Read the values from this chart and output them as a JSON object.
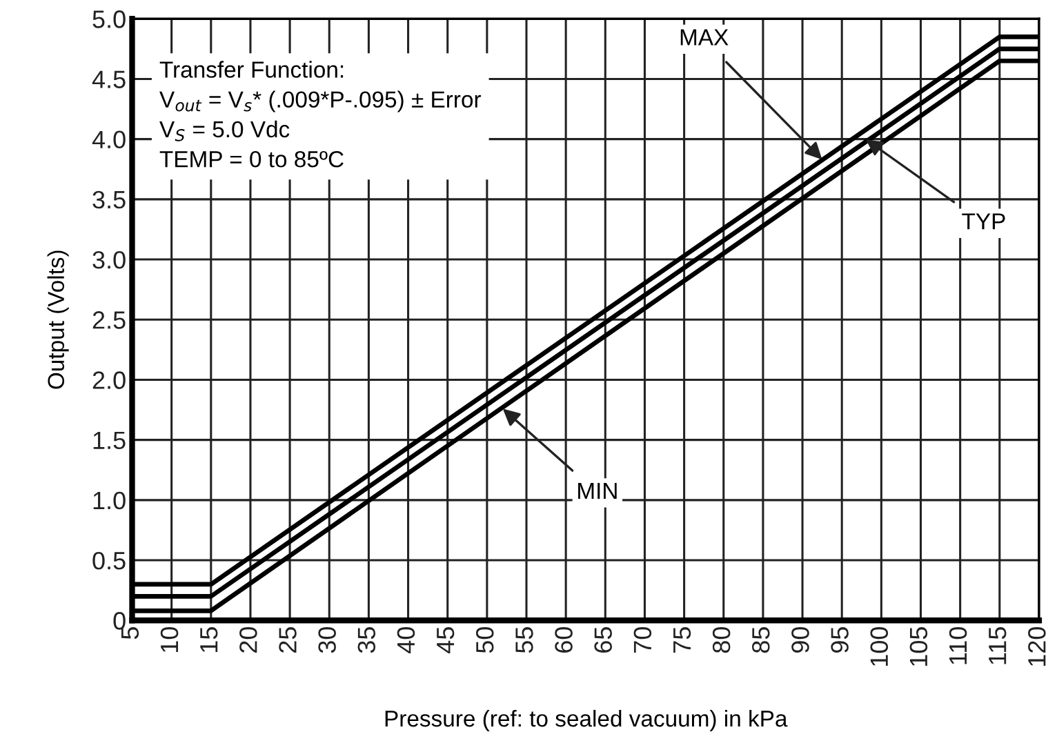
{
  "chart_data": {
    "type": "line",
    "xlabel": "Pressure (ref: to sealed vacuum) in kPa",
    "ylabel": "Output (Volts)",
    "series": [
      {
        "color": "#000000",
        "x": [
          5,
          15,
          115,
          120
        ],
        "values": [
          0.3,
          0.3,
          4.85,
          4.85
        ]
      },
      {
        "color": "#000000",
        "x": [
          5,
          15,
          115,
          120
        ],
        "values": [
          0.2,
          0.2,
          4.75,
          4.75
        ]
      },
      {
        "color": "#000000",
        "x": [
          5,
          15,
          115,
          120
        ],
        "values": [
          0.08,
          0.08,
          4.65,
          4.65
        ]
      }
    ],
    "xlim": [
      5,
      120
    ],
    "xticks": [
      5,
      10,
      15,
      20,
      25,
      30,
      35,
      40,
      45,
      50,
      55,
      60,
      65,
      70,
      75,
      80,
      85,
      90,
      95,
      100,
      105,
      110,
      115,
      120
    ],
    "ylim": [
      0,
      5
    ],
    "yticks": [
      0,
      0.5,
      {
        "value": 1,
        "label": "1.0"
      },
      1.5,
      {
        "value": 2,
        "label": "2.0"
      },
      2.5,
      {
        "value": 3,
        "label": "3.0"
      },
      3.5,
      {
        "value": 4,
        "label": "4.0"
      },
      4.5,
      {
        "value": 5,
        "label": "5.0"
      }
    ],
    "annotations": [
      "Transfer Function:\nV$_{out}$ = V$_{s}$* (.009*P-.095) ± Error\nV$_{S}$ = 5.0 Vdc\nTEMP = 0 to 85ºC",
      {
        "text": "MAX",
        "x": 92.5,
        "y": 3.83
      },
      {
        "text": "TYP",
        "x": 98,
        "y": 4.0
      },
      {
        "text": "MIN",
        "x": 52,
        "y": 1.76
      }
    ],
    "grid": true,
    "legend": false,
    "marker": "none",
    "line_style": "solid"
  }
}
